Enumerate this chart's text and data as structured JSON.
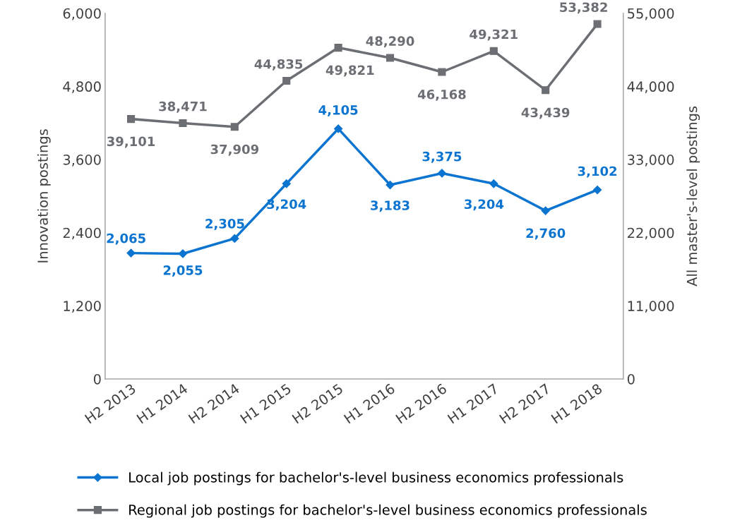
{
  "chart_data": {
    "type": "line",
    "ylabel": "Innovation postings",
    "y2label": "All master's-level postings",
    "categories": [
      "H2 2013",
      "H1 2014",
      "H2 2014",
      "H1 2015",
      "H2 2015",
      "H1 2016",
      "H2 2016",
      "H1 2017",
      "H2 2017",
      "H1 2018"
    ],
    "series": [
      {
        "name": "Local job postings for bachelor's-level business economics professionals",
        "color": "#0a74d0",
        "marker": "diamond",
        "values": [
          2065,
          2055,
          2305,
          3204,
          4105,
          3183,
          3375,
          3204,
          2760,
          3102
        ],
        "value_labels": [
          "2,065",
          "2,055",
          "2,305",
          "3,204",
          "4,105",
          "3,183",
          "3,375",
          "3,204",
          "2,760",
          "3,102"
        ]
      },
      {
        "name": "Regional job postings for bachelor's-level business economics professionals",
        "color": "#6b6e73",
        "marker": "square",
        "axis": "y2",
        "values": [
          39101,
          38471,
          37909,
          44835,
          49821,
          48290,
          46168,
          49321,
          43439,
          53382
        ],
        "value_labels": [
          "39,101",
          "38,471",
          "37,909",
          "44,835",
          "49,821",
          "48,290",
          "46,168",
          "49,321",
          "43,439",
          "53,382"
        ]
      }
    ],
    "ylim": [
      0,
      6000
    ],
    "yticks": [
      {
        "value": 0,
        "label": "0"
      },
      {
        "value": 1200,
        "label": "1,200"
      },
      {
        "value": 2400,
        "label": "2,400"
      },
      {
        "value": 3600,
        "label": "3,600"
      },
      {
        "value": 4800,
        "label": "4,800"
      },
      {
        "value": 6000,
        "label": "6,000"
      }
    ],
    "y2lim": [
      0,
      55000
    ],
    "y2ticks": [
      {
        "value": 0,
        "label": "0"
      },
      {
        "value": 11000,
        "label": "11,000"
      },
      {
        "value": 22000,
        "label": "22,000"
      },
      {
        "value": 33000,
        "label": "33,000"
      },
      {
        "value": 44000,
        "label": "44,000"
      },
      {
        "value": 55000,
        "label": "55,000"
      }
    ],
    "grid": false,
    "legend": "bottom",
    "line_style": "solid"
  }
}
